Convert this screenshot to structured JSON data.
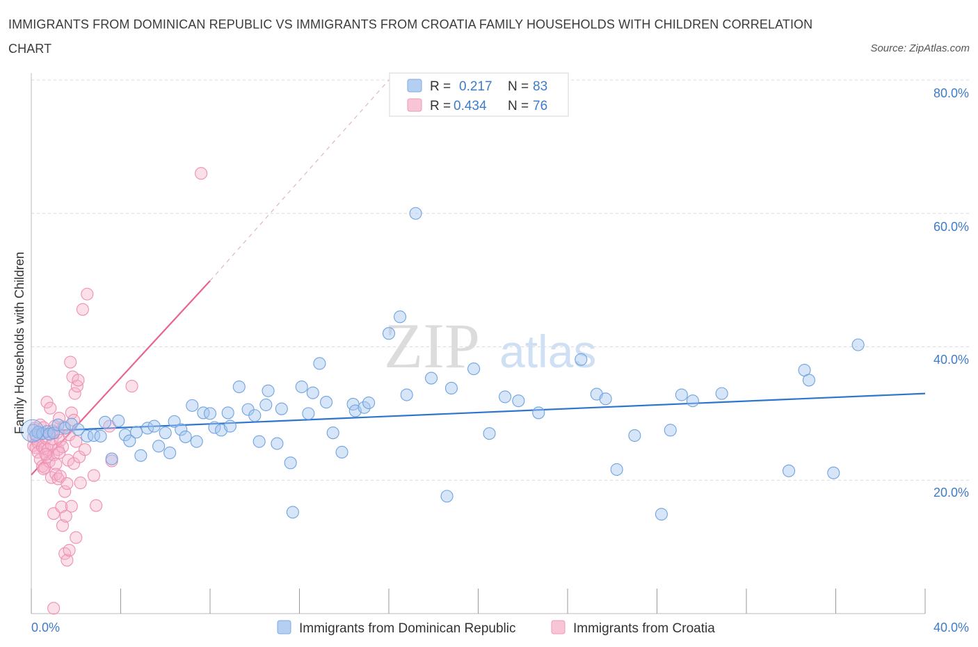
{
  "title": "IMMIGRANTS FROM DOMINICAN REPUBLIC VS IMMIGRANTS FROM CROATIA FAMILY HOUSEHOLDS WITH CHILDREN CORRELATION CHART",
  "source": "Source: ZipAtlas.com",
  "watermark": {
    "zip": "ZIP",
    "atlas": "atlas"
  },
  "colors": {
    "blue": "#6fa3e0",
    "blue_fill": "rgba(164,198,240,0.45)",
    "blue_line": "#2e75d0",
    "pink": "#ee8fb0",
    "pink_fill": "rgba(246,178,202,0.40)",
    "pink_line": "#e8648e",
    "grid": "#d9d9d9",
    "axis_text": "#3d7cc9"
  },
  "legend": {
    "r_label": "R =",
    "n_label": "N =",
    "items": [
      {
        "r": "0.217",
        "n": "83"
      },
      {
        "r": "0.434",
        "n": "76"
      }
    ]
  },
  "chart_data": {
    "type": "scatter",
    "title": "IMMIGRANTS FROM DOMINICAN REPUBLIC VS IMMIGRANTS FROM CROATIA FAMILY HOUSEHOLDS WITH CHILDREN CORRELATION CHART",
    "xlabel": "",
    "ylabel": "Family Households with Children",
    "xlim": [
      0,
      40
    ],
    "ylim": [
      0,
      80
    ],
    "x_tick_labels": [
      "0.0%",
      "40.0%"
    ],
    "y_ticks": [
      20,
      40,
      60,
      80
    ],
    "y_tick_labels": [
      "20.0%",
      "40.0%",
      "60.0%",
      "80.0%"
    ],
    "grid": true,
    "legend_position": "top-center",
    "series": [
      {
        "name": "Immigrants from Dominican Republic",
        "r": 0.217,
        "n": 83,
        "trend": {
          "x": [
            0,
            40
          ],
          "y": [
            27.3,
            33.0
          ]
        },
        "points": [
          [
            0.1,
            27.5
          ],
          [
            0.2,
            26.8
          ],
          [
            0.3,
            27.2
          ],
          [
            0.5,
            27.0
          ],
          [
            0.7,
            27.3
          ],
          [
            0.8,
            26.9
          ],
          [
            1.0,
            27.1
          ],
          [
            1.2,
            28.3
          ],
          [
            1.5,
            27.8
          ],
          [
            1.8,
            28.4
          ],
          [
            2.1,
            27.6
          ],
          [
            2.5,
            26.6
          ],
          [
            2.8,
            26.7
          ],
          [
            3.1,
            26.6
          ],
          [
            3.3,
            28.7
          ],
          [
            3.6,
            23.2
          ],
          [
            3.9,
            28.9
          ],
          [
            4.2,
            26.8
          ],
          [
            4.4,
            25.9
          ],
          [
            4.7,
            27.2
          ],
          [
            4.9,
            23.7
          ],
          [
            5.2,
            27.8
          ],
          [
            5.5,
            28.1
          ],
          [
            5.7,
            25.1
          ],
          [
            6.0,
            27.1
          ],
          [
            6.2,
            24.1
          ],
          [
            6.4,
            28.8
          ],
          [
            6.7,
            27.6
          ],
          [
            6.9,
            26.5
          ],
          [
            7.2,
            31.2
          ],
          [
            7.4,
            25.8
          ],
          [
            7.7,
            30.1
          ],
          [
            8.0,
            30.0
          ],
          [
            8.2,
            27.9
          ],
          [
            8.5,
            27.5
          ],
          [
            8.8,
            30.1
          ],
          [
            8.9,
            28.1
          ],
          [
            9.3,
            34.0
          ],
          [
            9.7,
            30.6
          ],
          [
            10.0,
            29.7
          ],
          [
            10.2,
            25.8
          ],
          [
            10.5,
            31.3
          ],
          [
            10.6,
            33.4
          ],
          [
            11.0,
            25.5
          ],
          [
            11.2,
            30.7
          ],
          [
            11.6,
            22.6
          ],
          [
            11.7,
            15.2
          ],
          [
            12.1,
            34.0
          ],
          [
            12.4,
            30.0
          ],
          [
            12.6,
            33.1
          ],
          [
            12.9,
            37.5
          ],
          [
            13.2,
            31.7
          ],
          [
            13.5,
            27.1
          ],
          [
            13.9,
            24.2
          ],
          [
            14.4,
            31.4
          ],
          [
            14.5,
            30.4
          ],
          [
            14.9,
            30.9
          ],
          [
            15.1,
            31.6
          ],
          [
            16.0,
            42.0
          ],
          [
            16.5,
            44.5
          ],
          [
            16.8,
            32.8
          ],
          [
            17.2,
            60.0
          ],
          [
            17.9,
            35.3
          ],
          [
            18.6,
            17.6
          ],
          [
            18.8,
            33.8
          ],
          [
            19.8,
            36.7
          ],
          [
            20.5,
            27.0
          ],
          [
            21.2,
            32.5
          ],
          [
            21.8,
            31.9
          ],
          [
            22.7,
            30.1
          ],
          [
            24.6,
            38.1
          ],
          [
            25.3,
            32.9
          ],
          [
            25.7,
            32.2
          ],
          [
            26.2,
            21.6
          ],
          [
            27.0,
            26.7
          ],
          [
            28.2,
            14.9
          ],
          [
            28.6,
            27.5
          ],
          [
            29.1,
            32.8
          ],
          [
            29.6,
            31.9
          ],
          [
            30.9,
            33.0
          ],
          [
            33.9,
            21.4
          ],
          [
            34.6,
            36.5
          ],
          [
            34.8,
            35.0
          ],
          [
            35.9,
            21.1
          ],
          [
            37.0,
            40.3
          ]
        ]
      },
      {
        "name": "Immigrants from Croatia",
        "r": 0.434,
        "n": 76,
        "trend": {
          "x": [
            0,
            8
          ],
          "y": [
            20.8,
            49.9
          ]
        },
        "trend_dashed": {
          "x": [
            8,
            16
          ],
          "y": [
            49.9,
            80.0
          ]
        },
        "points": [
          [
            0.1,
            26.4
          ],
          [
            0.1,
            25.2
          ],
          [
            0.15,
            27.8
          ],
          [
            0.2,
            24.9
          ],
          [
            0.25,
            26.1
          ],
          [
            0.3,
            25.6
          ],
          [
            0.3,
            24.2
          ],
          [
            0.35,
            27.2
          ],
          [
            0.4,
            28.3
          ],
          [
            0.4,
            23.1
          ],
          [
            0.45,
            26.9
          ],
          [
            0.5,
            25.0
          ],
          [
            0.5,
            22.1
          ],
          [
            0.55,
            27.9
          ],
          [
            0.6,
            24.8
          ],
          [
            0.6,
            21.9
          ],
          [
            0.65,
            26.3
          ],
          [
            0.7,
            31.7
          ],
          [
            0.7,
            23.5
          ],
          [
            0.75,
            24.6
          ],
          [
            0.8,
            27.0
          ],
          [
            0.8,
            22.8
          ],
          [
            0.85,
            30.8
          ],
          [
            0.9,
            25.3
          ],
          [
            0.9,
            20.4
          ],
          [
            0.95,
            26.2
          ],
          [
            1.0,
            23.8
          ],
          [
            1.0,
            15.0
          ],
          [
            1.05,
            28.1
          ],
          [
            1.1,
            22.4
          ],
          [
            1.1,
            20.9
          ],
          [
            1.15,
            27.1
          ],
          [
            1.2,
            24.6
          ],
          [
            1.2,
            20.2
          ],
          [
            1.25,
            29.3
          ],
          [
            1.3,
            26.0
          ],
          [
            1.3,
            20.6
          ],
          [
            1.35,
            16.0
          ],
          [
            1.4,
            25.0
          ],
          [
            1.4,
            13.2
          ],
          [
            1.45,
            28.0
          ],
          [
            1.5,
            18.3
          ],
          [
            1.5,
            9.0
          ],
          [
            1.55,
            14.6
          ],
          [
            1.6,
            19.5
          ],
          [
            1.6,
            8.0
          ],
          [
            1.65,
            23.0
          ],
          [
            1.7,
            26.8
          ],
          [
            1.7,
            9.5
          ],
          [
            1.75,
            37.7
          ],
          [
            1.8,
            30.1
          ],
          [
            1.8,
            16.1
          ],
          [
            1.85,
            35.5
          ],
          [
            1.9,
            29.0
          ],
          [
            1.9,
            22.5
          ],
          [
            1.95,
            33.0
          ],
          [
            2.0,
            25.8
          ],
          [
            2.0,
            11.4
          ],
          [
            2.05,
            34.1
          ],
          [
            2.1,
            35.0
          ],
          [
            2.15,
            23.5
          ],
          [
            2.2,
            19.6
          ],
          [
            2.3,
            45.6
          ],
          [
            2.4,
            24.6
          ],
          [
            2.5,
            47.9
          ],
          [
            2.8,
            20.7
          ],
          [
            2.9,
            16.2
          ],
          [
            3.5,
            28.1
          ],
          [
            3.6,
            22.9
          ],
          [
            4.5,
            34.1
          ],
          [
            7.6,
            66.0
          ],
          [
            1.0,
            0.8
          ],
          [
            0.65,
            23.9
          ],
          [
            0.95,
            27.4
          ],
          [
            1.25,
            24.1
          ],
          [
            0.55,
            21.7
          ]
        ]
      }
    ]
  }
}
